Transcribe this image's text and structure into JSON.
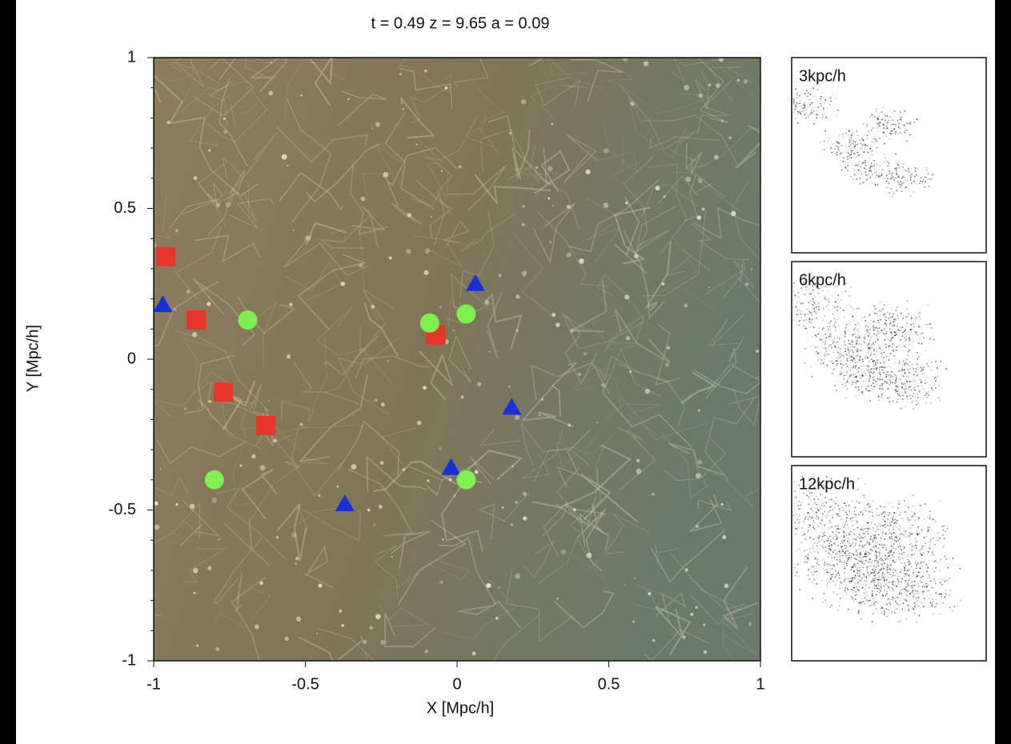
{
  "chart_data": {
    "type": "scatter",
    "title": "t = 0.49 z = 9.65 a = 0.09",
    "xlabel": "X [Mpc/h]",
    "ylabel": "Y [Mpc/h]",
    "xlim": [
      -1,
      1
    ],
    "ylim": [
      -1,
      1
    ],
    "xticks": [
      -1,
      -0.5,
      0,
      0.5,
      1
    ],
    "yticks": [
      -1,
      -0.5,
      0,
      0.5,
      1
    ],
    "yminorticks": [
      -0.9,
      -0.8,
      -0.7,
      -0.6,
      -0.4,
      -0.3,
      -0.2,
      -0.1,
      0.1,
      0.2,
      0.3,
      0.4,
      0.6,
      0.7,
      0.8,
      0.9
    ],
    "series": [
      {
        "marker": "square",
        "color": "#e8352a",
        "x": [
          -0.96,
          -0.86,
          -0.77,
          -0.63,
          -0.07
        ],
        "values": [
          0.34,
          0.13,
          -0.11,
          -0.22,
          0.08
        ]
      },
      {
        "marker": "triangle",
        "color": "#1a2fd6",
        "x": [
          -0.97,
          0.06,
          0.18,
          -0.02,
          -0.37
        ],
        "values": [
          0.18,
          0.25,
          -0.16,
          -0.36,
          -0.48
        ]
      },
      {
        "marker": "circle",
        "color": "#7ff04f",
        "x": [
          -0.69,
          -0.09,
          0.03,
          -0.8,
          0.03
        ],
        "values": [
          0.13,
          0.12,
          0.15,
          -0.4,
          -0.4
        ]
      }
    ],
    "panels": [
      "3kpc/h",
      "6kpc/h",
      "12kpc/h"
    ]
  }
}
